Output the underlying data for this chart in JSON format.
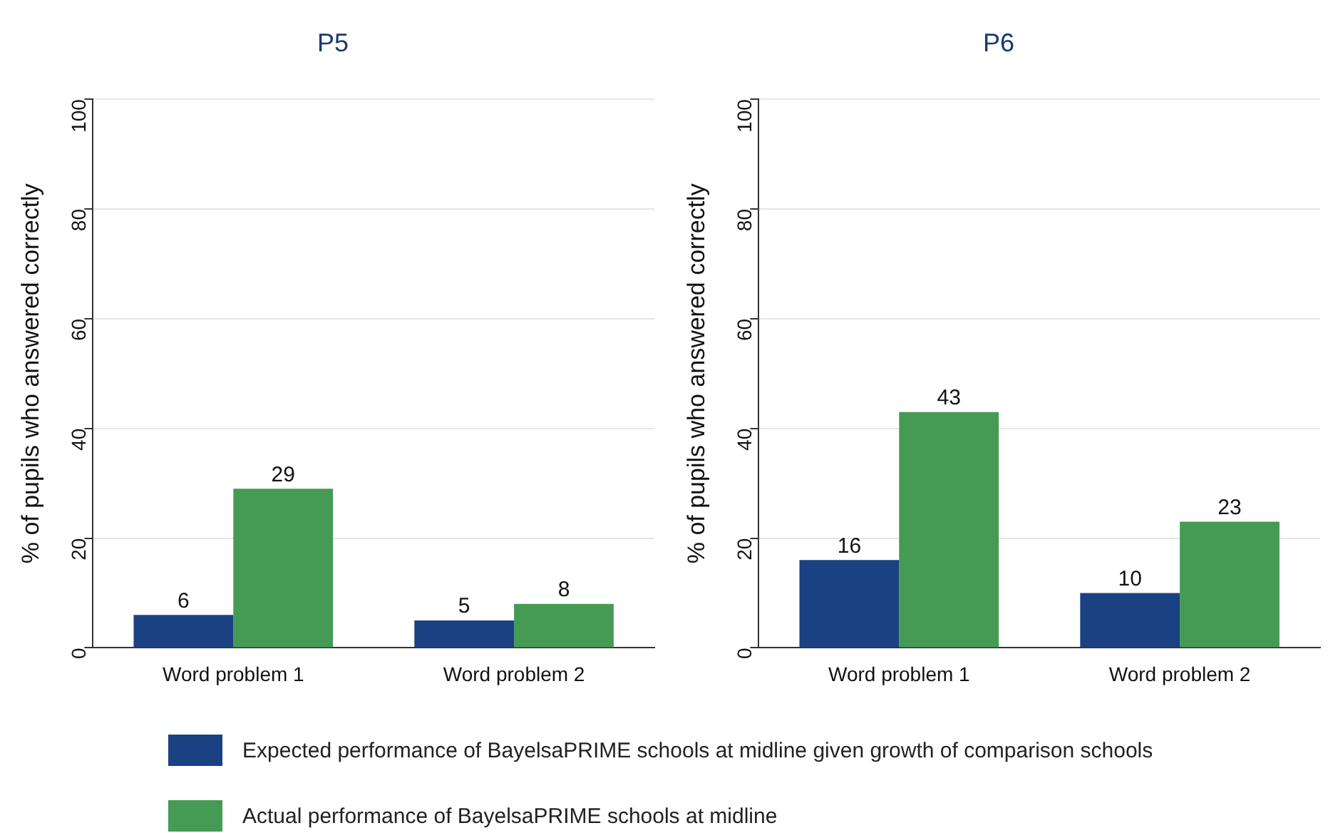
{
  "chart_data": [
    {
      "type": "bar",
      "title": "P5",
      "ylabel": "% of pupils who answered correctly",
      "categories": [
        "Word problem 1",
        "Word problem 2"
      ],
      "series": [
        {
          "name": "Expected performance of BayelsaPRIME schools at midline given growth of comparison schools",
          "color": "#1a4282",
          "values": [
            6,
            5
          ]
        },
        {
          "name": "Actual performance of BayelsaPRIME schools at midline",
          "color": "#459b54",
          "values": [
            29,
            8
          ]
        }
      ],
      "ylim": [
        0,
        100
      ],
      "yticks": [
        0,
        20,
        40,
        60,
        80,
        100
      ],
      "grid": "y",
      "data_labels": true,
      "legend": "bottom"
    },
    {
      "type": "bar",
      "title": "P6",
      "ylabel": "% of pupils who answered correctly",
      "categories": [
        "Word problem 1",
        "Word problem 2"
      ],
      "series": [
        {
          "color": "#1a4282",
          "values": [
            16,
            10
          ]
        },
        {
          "color": "#459b54",
          "values": [
            43,
            23
          ]
        }
      ],
      "ylim": [
        0,
        100
      ],
      "yticks": [
        0,
        20,
        40,
        60,
        80,
        100
      ],
      "grid": "y",
      "data_labels": true,
      "legend": false
    }
  ]
}
